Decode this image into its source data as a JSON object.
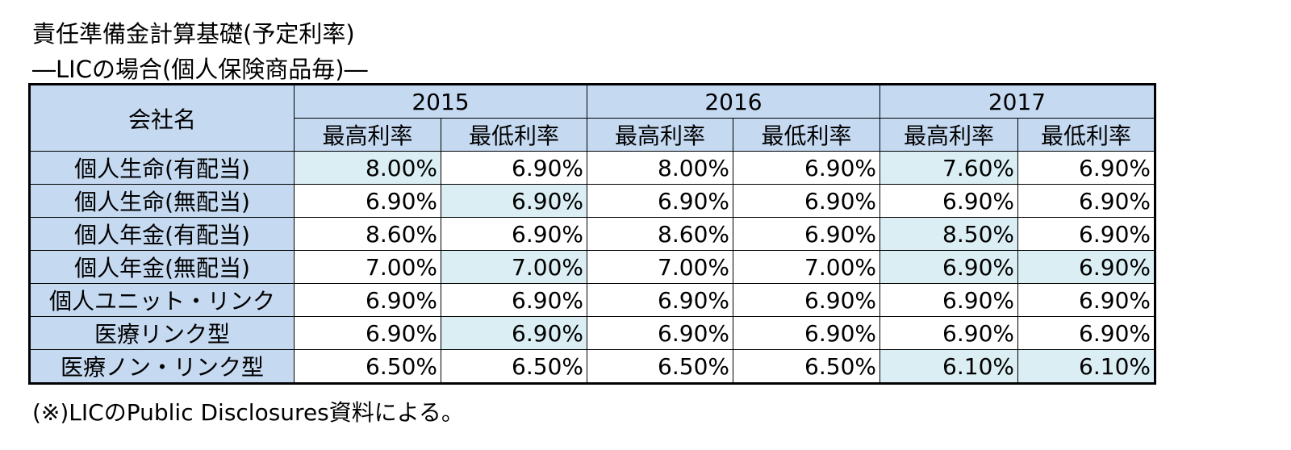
{
  "header": {
    "title": "責任準備金計算基礎(予定利率)",
    "subtitle": "―LICの場合(個人保険商品毎)―"
  },
  "table": {
    "company_header": "会社名",
    "years": [
      "2015",
      "2016",
      "2017"
    ],
    "sub_headers": [
      "最高利率",
      "最低利率",
      "最高利率",
      "最低利率",
      "最高利率",
      "最低利率"
    ],
    "rows": [
      [
        "個人生命(有配当)",
        "8.00%",
        "6.90%",
        "8.00%",
        "6.90%",
        "7.60%",
        "6.90%"
      ],
      [
        "個人生命(無配当)",
        "6.90%",
        "6.90%",
        "6.90%",
        "6.90%",
        "6.90%",
        "6.90%"
      ],
      [
        "個人年金(有配当)",
        "8.60%",
        "6.90%",
        "8.60%",
        "6.90%",
        "8.50%",
        "6.90%"
      ],
      [
        "個人年金(無配当)",
        "7.00%",
        "7.00%",
        "7.00%",
        "7.00%",
        "6.90%",
        "6.90%"
      ],
      [
        "個人ユニット・リンク",
        "6.90%",
        "6.90%",
        "6.90%",
        "6.90%",
        "6.90%",
        "6.90%"
      ],
      [
        "医療リンク型",
        "6.90%",
        "6.90%",
        "6.90%",
        "6.90%",
        "6.90%",
        "6.90%"
      ],
      [
        "医療ノン・リンク型",
        "6.50%",
        "6.50%",
        "6.50%",
        "6.50%",
        "6.10%",
        "6.10%"
      ]
    ]
  },
  "footnote": "(※)LICのPublic Disclosures資料による。"
}
